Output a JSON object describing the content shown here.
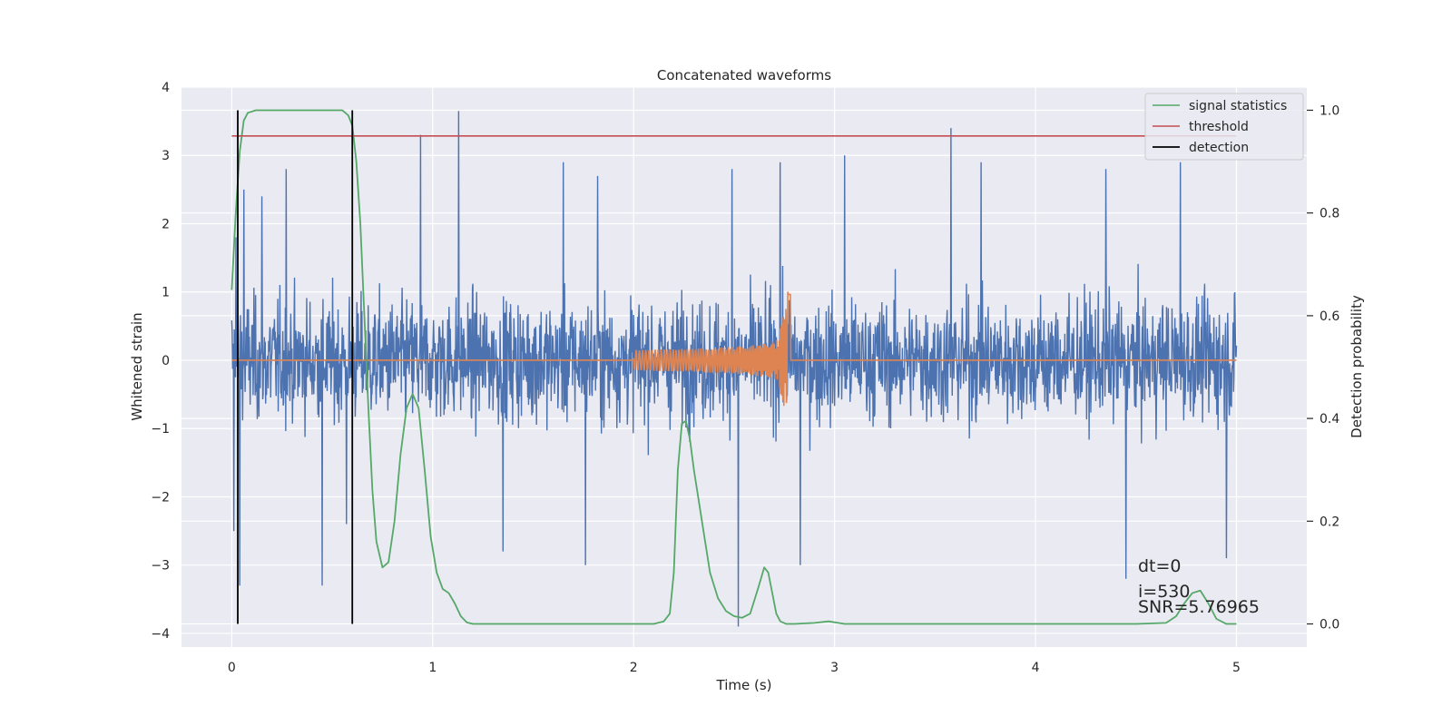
{
  "chart_data": {
    "type": "line",
    "title": "Concatenated waveforms",
    "xlabel": "Time (s)",
    "ylabel_left": "Whitened strain",
    "ylabel_right": "Detection probability",
    "xlim": [
      -0.25,
      5.35
    ],
    "ylim_left": [
      -4.2,
      4.0
    ],
    "ylim_right": [
      -0.045,
      1.045
    ],
    "x_ticks": [
      0,
      1,
      2,
      3,
      4,
      5
    ],
    "x_tick_labels": [
      "0",
      "1",
      "2",
      "3",
      "4",
      "5"
    ],
    "y_left_ticks": [
      -4,
      -3,
      -2,
      -1,
      0,
      1,
      2,
      3,
      4
    ],
    "y_left_tick_labels": [
      "−4",
      "−3",
      "−2",
      "−1",
      "0",
      "1",
      "2",
      "3",
      "4"
    ],
    "y_right_ticks": [
      0.0,
      0.2,
      0.4,
      0.6,
      0.8,
      1.0
    ],
    "y_right_tick_labels": [
      "0.0",
      "0.2",
      "0.4",
      "0.6",
      "0.8",
      "1.0"
    ],
    "grid": true,
    "legend_position": "top-right",
    "colors": {
      "background": "#eaeaf2",
      "grid": "#ffffff",
      "strain": "#4c72b0",
      "template": "#dd8452",
      "signal_statistics": "#55a868",
      "threshold": "#c44e52",
      "detection": "#000000"
    },
    "series": [
      {
        "name": "",
        "axis": "left",
        "role": "whitened strain noise",
        "x_range": [
          0,
          5
        ],
        "envelope_typical": [
          -1.5,
          2.2
        ],
        "spikes": [
          {
            "x": 0.01,
            "y": -2.5
          },
          {
            "x": 0.02,
            "y": 1.8
          },
          {
            "x": 0.04,
            "y": -3.3
          },
          {
            "x": 0.06,
            "y": 2.5
          },
          {
            "x": 0.15,
            "y": 2.4
          },
          {
            "x": 0.27,
            "y": 2.8
          },
          {
            "x": 0.45,
            "y": -3.3
          },
          {
            "x": 0.57,
            "y": -2.4
          },
          {
            "x": 0.94,
            "y": 3.3
          },
          {
            "x": 1.13,
            "y": 3.65
          },
          {
            "x": 1.35,
            "y": -2.8
          },
          {
            "x": 1.65,
            "y": 2.9
          },
          {
            "x": 1.76,
            "y": -3.0
          },
          {
            "x": 1.82,
            "y": 2.7
          },
          {
            "x": 2.49,
            "y": 2.8
          },
          {
            "x": 2.52,
            "y": -3.9
          },
          {
            "x": 2.73,
            "y": 2.9
          },
          {
            "x": 2.83,
            "y": -3.0
          },
          {
            "x": 3.05,
            "y": 3.0
          },
          {
            "x": 3.58,
            "y": 3.4
          },
          {
            "x": 3.73,
            "y": 2.9
          },
          {
            "x": 4.35,
            "y": 2.8
          },
          {
            "x": 4.45,
            "y": -3.2
          },
          {
            "x": 4.72,
            "y": 2.9
          },
          {
            "x": 4.95,
            "y": -2.9
          }
        ]
      },
      {
        "name": "",
        "axis": "left",
        "role": "injected chirp",
        "x_range": [
          2.0,
          2.78
        ],
        "amplitude_start": 0.15,
        "amplitude_peak": 1.05,
        "peak_x": 2.77
      },
      {
        "name": "signal statistics",
        "axis": "right",
        "x": [
          0.0,
          0.02,
          0.04,
          0.06,
          0.08,
          0.12,
          0.2,
          0.3,
          0.4,
          0.5,
          0.55,
          0.58,
          0.6,
          0.62,
          0.64,
          0.66,
          0.68,
          0.7,
          0.72,
          0.75,
          0.78,
          0.81,
          0.84,
          0.87,
          0.9,
          0.93,
          0.96,
          0.99,
          1.02,
          1.05,
          1.08,
          1.11,
          1.14,
          1.17,
          1.2,
          1.3,
          1.5,
          1.8,
          2.0,
          2.1,
          2.15,
          2.18,
          2.2,
          2.22,
          2.24,
          2.26,
          2.28,
          2.3,
          2.34,
          2.38,
          2.42,
          2.46,
          2.5,
          2.54,
          2.58,
          2.62,
          2.65,
          2.67,
          2.69,
          2.71,
          2.73,
          2.76,
          2.8,
          2.9,
          2.97,
          3.05,
          3.2,
          3.5,
          4.0,
          4.5,
          4.65,
          4.7,
          4.74,
          4.78,
          4.82,
          4.86,
          4.9,
          4.95,
          5.0
        ],
        "y": [
          0.65,
          0.8,
          0.92,
          0.98,
          0.995,
          1.0,
          1.0,
          1.0,
          1.0,
          1.0,
          1.0,
          0.99,
          0.97,
          0.9,
          0.78,
          0.6,
          0.42,
          0.26,
          0.16,
          0.11,
          0.12,
          0.2,
          0.33,
          0.42,
          0.448,
          0.42,
          0.3,
          0.17,
          0.1,
          0.068,
          0.06,
          0.04,
          0.015,
          0.003,
          0.0,
          0.0,
          0.0,
          0.0,
          0.0,
          0.0,
          0.005,
          0.02,
          0.1,
          0.3,
          0.39,
          0.395,
          0.36,
          0.3,
          0.2,
          0.1,
          0.05,
          0.025,
          0.015,
          0.012,
          0.02,
          0.07,
          0.11,
          0.1,
          0.06,
          0.02,
          0.005,
          0.0,
          0.0,
          0.002,
          0.005,
          0.0,
          0.0,
          0.0,
          0.0,
          0.0,
          0.002,
          0.015,
          0.04,
          0.06,
          0.065,
          0.04,
          0.01,
          0.0,
          0.0
        ]
      },
      {
        "name": "threshold",
        "axis": "right",
        "x": [
          0,
          5
        ],
        "y": [
          0.95,
          0.95
        ]
      },
      {
        "name": "detection",
        "axis": "right",
        "type": "vlines",
        "x": [
          0.03,
          0.6
        ],
        "y_range": [
          0.0,
          1.0
        ]
      }
    ],
    "annotations": {
      "line1": "dt=0",
      "line2": "i=530",
      "line3": "SNR=5.76965"
    }
  }
}
